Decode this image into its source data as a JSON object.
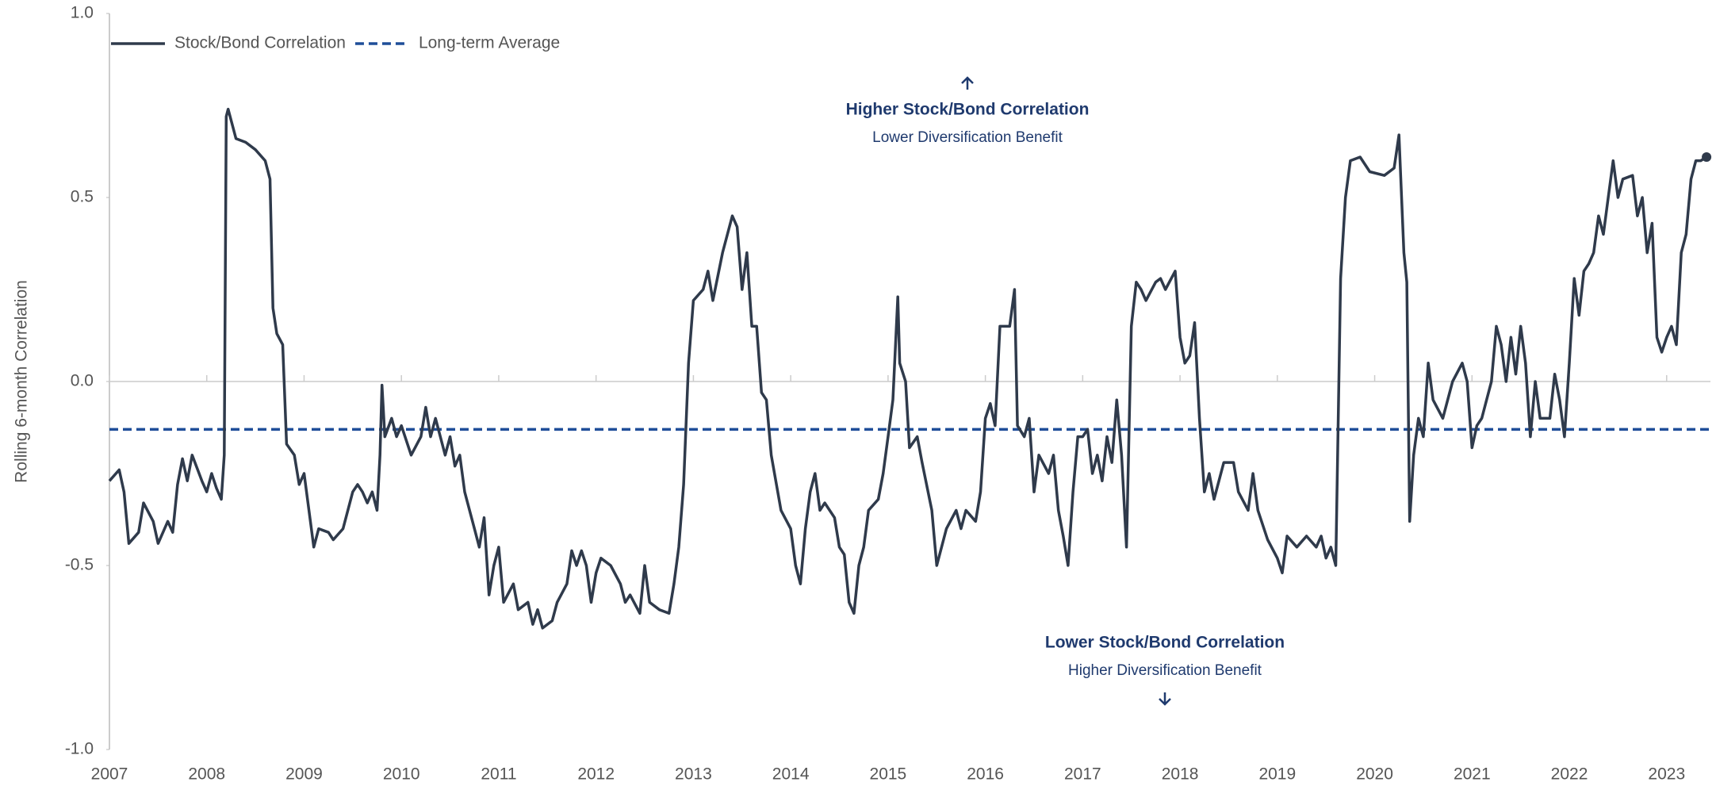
{
  "chart_data": {
    "type": "line",
    "y_label": "Rolling 6-month Correlation",
    "xlim": [
      2007,
      2023.45
    ],
    "xticks": [
      2007,
      2008,
      2009,
      2010,
      2011,
      2012,
      2013,
      2014,
      2015,
      2016,
      2017,
      2018,
      2019,
      2020,
      2021,
      2022,
      2023
    ],
    "ylim": [
      -1,
      1
    ],
    "yticks": [
      {
        "value": 1,
        "label": "1.0"
      },
      {
        "value": 0.5,
        "label": "0.5"
      },
      {
        "value": 0,
        "label": "0.0"
      },
      {
        "value": -0.5,
        "label": "-0.5"
      },
      {
        "value": -1,
        "label": "-1.0"
      }
    ],
    "legend": "top-left",
    "series": [
      {
        "name": "Stock/Bond Correlation",
        "color": "#2f3a4b",
        "x": [
          2007.0,
          2007.1,
          2007.15,
          2007.2,
          2007.3,
          2007.35,
          2007.45,
          2007.5,
          2007.6,
          2007.65,
          2007.7,
          2007.75,
          2007.8,
          2007.85,
          2007.95,
          2008.0,
          2008.05,
          2008.1,
          2008.15,
          2008.18,
          2008.2,
          2008.22,
          2008.3,
          2008.4,
          2008.5,
          2008.6,
          2008.65,
          2008.68,
          2008.72,
          2008.78,
          2008.82,
          2008.9,
          2008.95,
          2009.0,
          2009.05,
          2009.1,
          2009.15,
          2009.25,
          2009.3,
          2009.4,
          2009.5,
          2009.55,
          2009.6,
          2009.65,
          2009.7,
          2009.75,
          2009.78,
          2009.8,
          2009.83,
          2009.9,
          2009.95,
          2010.0,
          2010.1,
          2010.2,
          2010.25,
          2010.3,
          2010.35,
          2010.45,
          2010.5,
          2010.55,
          2010.6,
          2010.65,
          2010.75,
          2010.8,
          2010.85,
          2010.9,
          2010.95,
          2011.0,
          2011.05,
          2011.15,
          2011.2,
          2011.3,
          2011.35,
          2011.4,
          2011.45,
          2011.55,
          2011.6,
          2011.7,
          2011.75,
          2011.8,
          2011.85,
          2011.9,
          2011.95,
          2012.0,
          2012.05,
          2012.15,
          2012.25,
          2012.3,
          2012.35,
          2012.45,
          2012.5,
          2012.55,
          2012.65,
          2012.75,
          2012.8,
          2012.85,
          2012.9,
          2012.95,
          2013.0,
          2013.1,
          2013.15,
          2013.2,
          2013.3,
          2013.4,
          2013.45,
          2013.5,
          2013.55,
          2013.6,
          2013.65,
          2013.7,
          2013.75,
          2013.8,
          2013.9,
          2014.0,
          2014.05,
          2014.1,
          2014.15,
          2014.2,
          2014.25,
          2014.3,
          2014.35,
          2014.45,
          2014.5,
          2014.55,
          2014.6,
          2014.65,
          2014.7,
          2014.75,
          2014.8,
          2014.9,
          2014.95,
          2015.0,
          2015.05,
          2015.1,
          2015.12,
          2015.18,
          2015.22,
          2015.3,
          2015.35,
          2015.45,
          2015.5,
          2015.55,
          2015.6,
          2015.7,
          2015.75,
          2015.8,
          2015.9,
          2015.95,
          2016.0,
          2016.05,
          2016.1,
          2016.15,
          2016.25,
          2016.3,
          2016.33,
          2016.4,
          2016.45,
          2016.5,
          2016.55,
          2016.65,
          2016.7,
          2016.75,
          2016.8,
          2016.85,
          2016.9,
          2016.95,
          2017.0,
          2017.05,
          2017.1,
          2017.15,
          2017.2,
          2017.25,
          2017.3,
          2017.35,
          2017.4,
          2017.45,
          2017.5,
          2017.55,
          2017.6,
          2017.65,
          2017.75,
          2017.8,
          2017.85,
          2017.95,
          2018.0,
          2018.05,
          2018.1,
          2018.15,
          2018.2,
          2018.25,
          2018.3,
          2018.35,
          2018.45,
          2018.55,
          2018.6,
          2018.7,
          2018.75,
          2018.8,
          2018.9,
          2019.0,
          2019.05,
          2019.1,
          2019.2,
          2019.3,
          2019.4,
          2019.45,
          2019.5,
          2019.55,
          2019.6,
          2019.65,
          2019.7,
          2019.75,
          2019.85,
          2019.95,
          2020.1,
          2020.2,
          2020.25,
          2020.3,
          2020.33,
          2020.36,
          2020.4,
          2020.45,
          2020.5,
          2020.55,
          2020.6,
          2020.7,
          2020.8,
          2020.9,
          2020.95,
          2021.0,
          2021.05,
          2021.1,
          2021.2,
          2021.25,
          2021.3,
          2021.35,
          2021.4,
          2021.45,
          2021.5,
          2021.55,
          2021.6,
          2021.65,
          2021.7,
          2021.8,
          2021.85,
          2021.9,
          2021.95,
          2022.0,
          2022.05,
          2022.1,
          2022.15,
          2022.2,
          2022.25,
          2022.3,
          2022.35,
          2022.4,
          2022.45,
          2022.5,
          2022.55,
          2022.65,
          2022.7,
          2022.75,
          2022.8,
          2022.85,
          2022.9,
          2022.95,
          2023.0,
          2023.05,
          2023.1,
          2023.15,
          2023.2,
          2023.25,
          2023.3,
          2023.35,
          2023.41
        ],
        "values": [
          -0.27,
          -0.24,
          -0.3,
          -0.44,
          -0.41,
          -0.33,
          -0.38,
          -0.44,
          -0.38,
          -0.41,
          -0.28,
          -0.21,
          -0.27,
          -0.2,
          -0.27,
          -0.3,
          -0.25,
          -0.29,
          -0.32,
          -0.2,
          0.72,
          0.74,
          0.66,
          0.65,
          0.63,
          0.6,
          0.55,
          0.2,
          0.13,
          0.1,
          -0.17,
          -0.2,
          -0.28,
          -0.25,
          -0.35,
          -0.45,
          -0.4,
          -0.41,
          -0.43,
          -0.4,
          -0.3,
          -0.28,
          -0.3,
          -0.33,
          -0.3,
          -0.35,
          -0.2,
          -0.01,
          -0.15,
          -0.1,
          -0.15,
          -0.12,
          -0.2,
          -0.15,
          -0.07,
          -0.15,
          -0.1,
          -0.2,
          -0.15,
          -0.23,
          -0.2,
          -0.3,
          -0.4,
          -0.45,
          -0.37,
          -0.58,
          -0.5,
          -0.45,
          -0.6,
          -0.55,
          -0.62,
          -0.6,
          -0.66,
          -0.62,
          -0.67,
          -0.65,
          -0.6,
          -0.55,
          -0.46,
          -0.5,
          -0.46,
          -0.5,
          -0.6,
          -0.52,
          -0.48,
          -0.5,
          -0.55,
          -0.6,
          -0.58,
          -0.63,
          -0.5,
          -0.6,
          -0.62,
          -0.63,
          -0.55,
          -0.45,
          -0.28,
          0.05,
          0.22,
          0.25,
          0.3,
          0.22,
          0.35,
          0.45,
          0.42,
          0.25,
          0.35,
          0.15,
          0.15,
          -0.03,
          -0.05,
          -0.2,
          -0.35,
          -0.4,
          -0.5,
          -0.55,
          -0.4,
          -0.3,
          -0.25,
          -0.35,
          -0.33,
          -0.37,
          -0.45,
          -0.47,
          -0.6,
          -0.63,
          -0.5,
          -0.45,
          -0.35,
          -0.32,
          -0.25,
          -0.15,
          -0.05,
          0.23,
          0.05,
          0.0,
          -0.18,
          -0.15,
          -0.22,
          -0.35,
          -0.5,
          -0.45,
          -0.4,
          -0.35,
          -0.4,
          -0.35,
          -0.38,
          -0.3,
          -0.1,
          -0.06,
          -0.12,
          0.15,
          0.15,
          0.25,
          -0.12,
          -0.15,
          -0.1,
          -0.3,
          -0.2,
          -0.25,
          -0.2,
          -0.35,
          -0.42,
          -0.5,
          -0.3,
          -0.15,
          -0.15,
          -0.13,
          -0.25,
          -0.2,
          -0.27,
          -0.15,
          -0.22,
          -0.05,
          -0.2,
          -0.45,
          0.15,
          0.27,
          0.25,
          0.22,
          0.27,
          0.28,
          0.25,
          0.3,
          0.12,
          0.05,
          0.07,
          0.16,
          -0.1,
          -0.3,
          -0.25,
          -0.32,
          -0.22,
          -0.22,
          -0.3,
          -0.35,
          -0.25,
          -0.35,
          -0.43,
          -0.48,
          -0.52,
          -0.42,
          -0.45,
          -0.42,
          -0.45,
          -0.42,
          -0.48,
          -0.45,
          -0.5,
          0.28,
          0.5,
          0.6,
          0.61,
          0.57,
          0.56,
          0.58,
          0.67,
          0.35,
          0.27,
          -0.38,
          -0.2,
          -0.1,
          -0.15,
          0.05,
          -0.05,
          -0.1,
          0.0,
          0.05,
          0.0,
          -0.18,
          -0.12,
          -0.1,
          0.0,
          0.15,
          0.1,
          0.0,
          0.12,
          0.02,
          0.15,
          0.05,
          -0.15,
          0.0,
          -0.1,
          -0.1,
          0.02,
          -0.05,
          -0.15,
          0.05,
          0.28,
          0.18,
          0.3,
          0.32,
          0.35,
          0.45,
          0.4,
          0.5,
          0.6,
          0.5,
          0.55,
          0.56,
          0.45,
          0.5,
          0.35,
          0.43,
          0.12,
          0.08,
          0.12,
          0.15,
          0.1,
          0.35,
          0.4,
          0.55,
          0.6,
          0.6,
          0.61
        ]
      }
    ],
    "average": {
      "name": "Long-term Average",
      "color": "#1f4e99",
      "value": -0.13
    },
    "annotations": [
      {
        "title": "Higher Stock/Bond Correlation",
        "text": "Lower Diversification Benefit"
      },
      {
        "title": "Lower Stock/Bond Correlation",
        "text": "Higher Diversification Benefit"
      }
    ]
  }
}
